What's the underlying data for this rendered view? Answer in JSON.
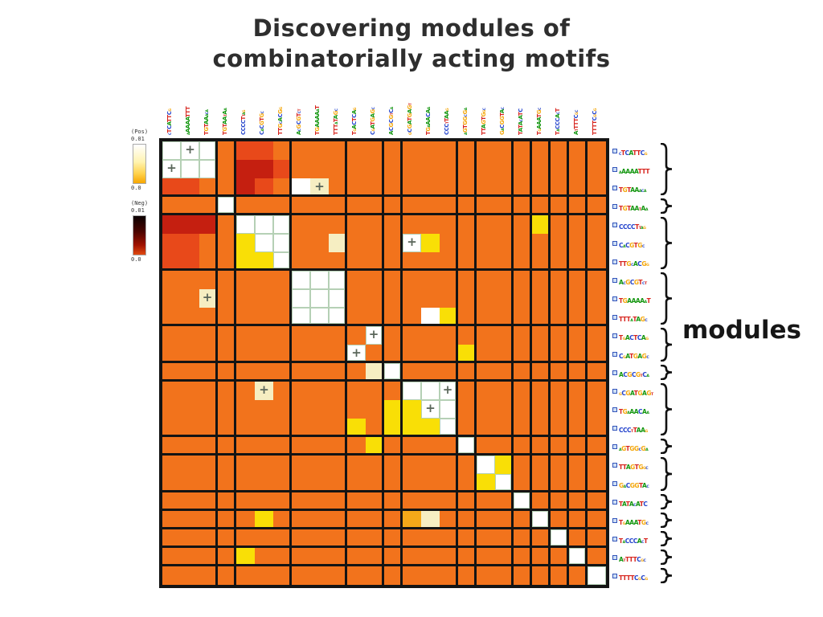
{
  "slide": {
    "title_line1": "Discovering modules of",
    "title_line2": "combinatorially acting motifs",
    "modules_label": "modules"
  },
  "legend": {
    "pos_label": "(Pos)",
    "pos_max": "0.01",
    "pos_min": "0.0",
    "neg_label": "(Neg)",
    "neg_max": "0.01",
    "neg_min": "0.0"
  },
  "base_colors": {
    "A": "#13960f",
    "C": "#2242cc",
    "G": "#f4a70b",
    "T": "#d6231c"
  },
  "chart_data": {
    "type": "heatmap",
    "title": "Motif pairwise co-occurrence significance matrix",
    "size": 24,
    "symmetric": true,
    "motifs": [
      "cTCATTCg",
      "aAAAATTT",
      "TGTAAaca",
      "TGTAAtAa",
      "CCCCTtag",
      "CaCGTGc",
      "TTGcACGg",
      "AcGCGTct",
      "TGAAAAaT",
      "TTTaTAGc",
      "TgACTCAg",
      "CgATGAGc",
      "ACGCGtCa",
      "gCGATGAGt",
      "TGaAACAa",
      "CCCtTAAg",
      "aGTGGcGa",
      "TTAGTGgc",
      "GaCGGTAc",
      "TATAcATC",
      "TgAAATGc",
      "TaCCCAcT",
      "AtTTTCgc",
      "TTTTCgCg"
    ],
    "module_groups": [
      3,
      1,
      3,
      3,
      2,
      1,
      3,
      1,
      2,
      1,
      1,
      1,
      1,
      1
    ],
    "color_codes": {
      "o": "#f2731c",
      "r": "#e8491a",
      "R": "#c51f10",
      "y": "#f9df06",
      "c": "#f6eec2",
      "d": "#f5a919",
      "w": "#ffffff",
      "W": "#ffffff"
    },
    "color_meaning": {
      "o": "baseline (p ~ 0)",
      "y": "positive significance (medium)",
      "w": "positive significance (strong, p = 0.01 scale)",
      "W": "positive significance (strong, within module block, green grid)",
      "c": "positive significance (weak-medium)",
      "d": "positive significance (weak)",
      "r": "negative significance (medium)",
      "R": "negative significance (strong)"
    },
    "cell_colors_by_row": [
      "WWWorroooooooooooooooooo",
      "WWWoRRrooooooooooooooooo",
      "rrooRrowcooooooooooooooo",
      "oooWoooooooooooooooooooo",
      "RRRoWWWoooooooooooooyooo",
      "rrooyWWoocoooWyooooooooo",
      "rrooyyWooooooooooooooooo",
      "oooooooWWWoooooooooooooo",
      "oocooooWWWoooooooooooooo",
      "oooooooWWWoooowyoooooooo",
      "oooooooooooWoooooooooooo",
      "ooooooooooWoooooyooooooo",
      "ooooooooooocWooooooooooo",
      "ooooocoooooooWWWoooooooo",
      "ooooooooooooyyWWoooooooo",
      "ooooooooooyoyyyWoooooooo",
      "oooooooooooyooooWooooooo",
      "oooooooooooooooooWyooooo",
      "oooooooooooooooooyWooooo",
      "oooooooooooooooooooWoooo",
      "oooooyooooooodcoooooWooo",
      "oooooooooooooooooooooWoo",
      "ooooyoooooooooooooooooWo",
      "oooooooooooooooooooooooW"
    ],
    "plus_marks": [
      [
        1,
        2
      ],
      [
        2,
        1
      ],
      [
        3,
        9
      ],
      [
        6,
        14
      ],
      [
        9,
        3
      ],
      [
        11,
        12
      ],
      [
        12,
        11
      ],
      [
        14,
        6
      ],
      [
        14,
        16
      ],
      [
        15,
        15
      ]
    ],
    "scale": {
      "pos": {
        "max": 0.01,
        "min": 0.0
      },
      "neg": {
        "max": 0.01,
        "min": 0.0
      }
    }
  }
}
